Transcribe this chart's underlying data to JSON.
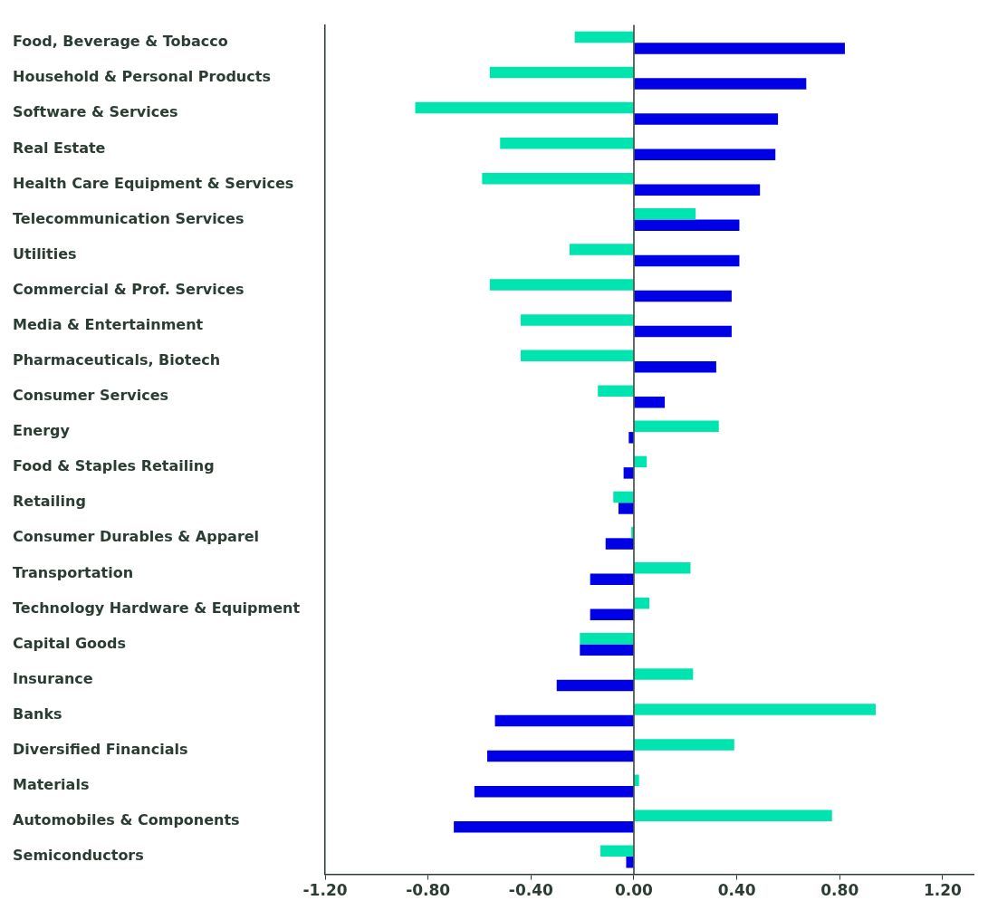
{
  "chart_data": {
    "type": "bar",
    "orientation": "horizontal",
    "categories": [
      "Food, Beverage & Tobacco",
      "Household & Personal Products",
      "Software & Services",
      "Real Estate",
      "Health Care Equipment & Services",
      "Telecommunication Services",
      "Utilities",
      "Commercial & Prof. Services",
      "Media & Entertainment",
      "Pharmaceuticals, Biotech",
      "Consumer Services",
      "Energy",
      "Food & Staples Retailing",
      "Retailing",
      "Consumer Durables & Apparel",
      "Transportation",
      "Technology Hardware & Equipment",
      "Capital Goods",
      "Insurance",
      "Banks",
      "Diversified Financials",
      "Materials",
      "Automobiles & Components",
      "Semiconductors"
    ],
    "series": [
      {
        "color": "#00e5b0",
        "values": [
          -0.23,
          -0.56,
          -0.85,
          -0.52,
          -0.59,
          0.24,
          -0.25,
          -0.56,
          -0.44,
          -0.44,
          -0.14,
          0.33,
          0.05,
          -0.08,
          -0.01,
          0.22,
          0.06,
          -0.21,
          0.23,
          0.94,
          0.39,
          0.02,
          0.77,
          -0.13
        ]
      },
      {
        "color": "#0000e6",
        "values": [
          0.82,
          0.67,
          0.56,
          0.55,
          0.49,
          0.41,
          0.41,
          0.38,
          0.38,
          0.32,
          0.12,
          -0.02,
          -0.04,
          -0.06,
          -0.11,
          -0.17,
          -0.17,
          -0.21,
          -0.3,
          -0.54,
          -0.57,
          -0.62,
          -0.7,
          -0.03
        ]
      }
    ],
    "xlim": [
      -1.2,
      1.32
    ],
    "xticks": [
      {
        "value": -1.2,
        "label": "-1.20"
      },
      {
        "value": -0.8,
        "label": "-0.80"
      },
      {
        "value": -0.4,
        "label": "-0.40"
      },
      {
        "value": 0,
        "label": "0.00"
      },
      {
        "value": 0.4,
        "label": "0.40"
      },
      {
        "value": 0.8,
        "label": "0.80"
      },
      {
        "value": 1.2,
        "label": "1.20"
      }
    ],
    "ref_lines": [
      {
        "axis": "x",
        "value": 0,
        "color": "#2b3d33"
      }
    ],
    "grid": false,
    "legend": false
  }
}
